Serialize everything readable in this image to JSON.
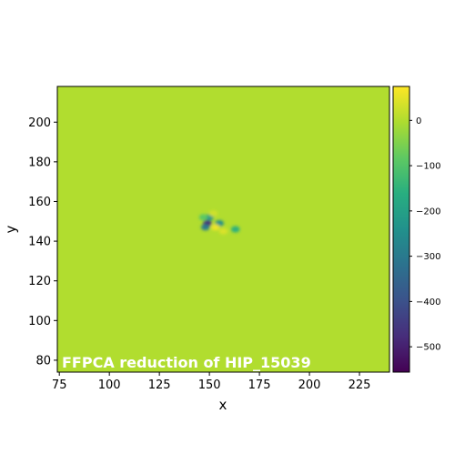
{
  "chart_data": {
    "type": "heatmap",
    "annotation": "FFPCA reduction of HIP_15039",
    "xlabel": "x",
    "ylabel": "y",
    "xlim": [
      74,
      240
    ],
    "ylim": [
      74,
      218
    ],
    "xticks": [
      75,
      100,
      125,
      150,
      175,
      200,
      225
    ],
    "yticks": [
      80,
      100,
      120,
      140,
      160,
      180,
      200
    ],
    "colorbar": {
      "colormap": "viridis",
      "range": [
        -556,
        75
      ],
      "ticks": [
        0,
        -100,
        -200,
        -300,
        -400,
        -500
      ]
    },
    "background_value": 0,
    "features": [
      {
        "x": 150,
        "y": 152,
        "value": -220
      },
      {
        "x": 149,
        "y": 149,
        "value": -480
      },
      {
        "x": 148,
        "y": 147,
        "value": -300
      },
      {
        "x": 155,
        "y": 149,
        "value": -250
      },
      {
        "x": 153,
        "y": 147,
        "value": 60
      },
      {
        "x": 157,
        "y": 145,
        "value": 40
      },
      {
        "x": 163,
        "y": 146,
        "value": -160
      },
      {
        "x": 147,
        "y": 152,
        "value": -90
      },
      {
        "x": 152,
        "y": 154,
        "value": 30
      }
    ]
  }
}
